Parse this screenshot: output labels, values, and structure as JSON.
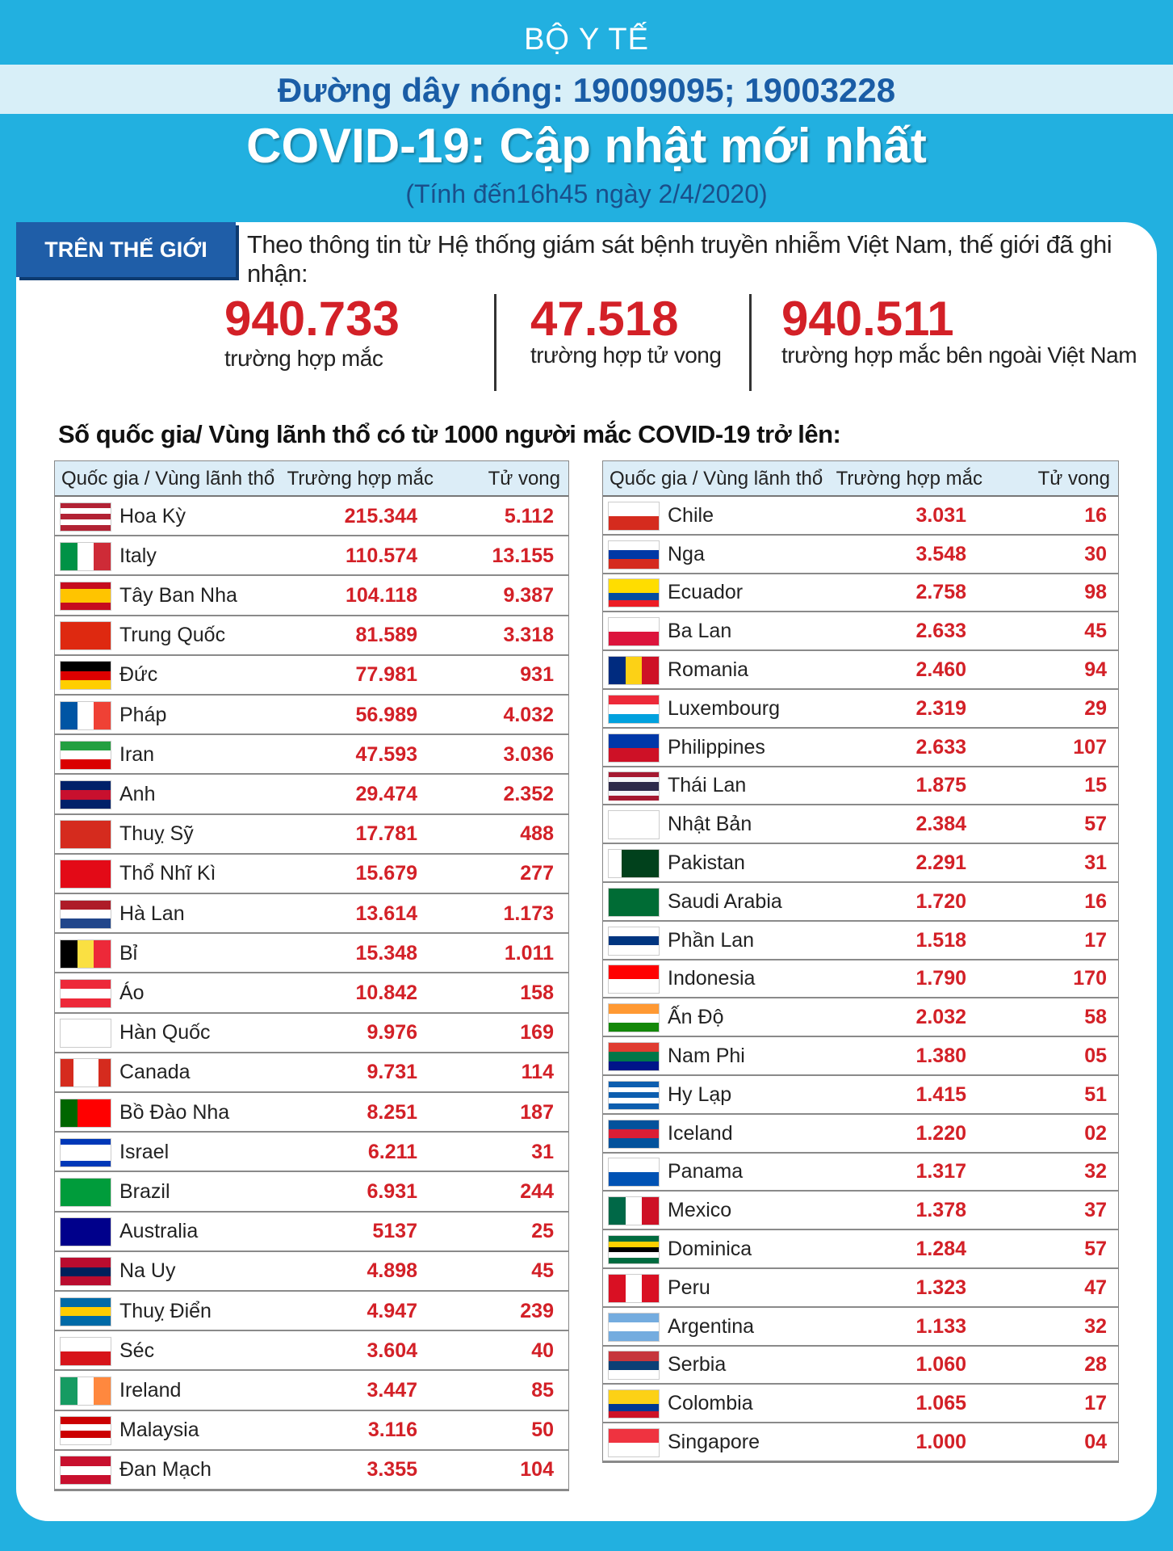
{
  "header": {
    "ministry": "BỘ Y TẾ",
    "hotline": "Đường dây nóng: 19009095; 19003228",
    "title": "COVID-19: Cập nhật mới nhất",
    "subtitle": "(Tính đến16h45 ngày 2/4/2020)"
  },
  "world": {
    "tab": "TRÊN THẾ GIỚI",
    "intro": "Theo thông tin từ Hệ thống giám sát bệnh truyền nhiễm Việt Nam, thế giới đã ghi nhận:",
    "stats": [
      {
        "value": "940.733",
        "label": "trường hợp mắc"
      },
      {
        "value": "47.518",
        "label": "trường hợp tử vong"
      },
      {
        "value": "940.511",
        "label": "trường hợp  mắc bên ngoài Việt Nam"
      }
    ]
  },
  "heading": "Số quốc gia/ Vùng lãnh thổ có từ 1000 người  mắc COVID-19 trở lên:",
  "tables": [
    {
      "columns": [
        "Quốc gia / Vùng lãnh thổ",
        "Trường hợp mắc",
        "Tử vong"
      ],
      "rows": [
        [
          "Hoa Kỳ",
          "215.344",
          "5.112"
        ],
        [
          "Italy",
          "110.574",
          "13.155"
        ],
        [
          "Tây Ban Nha",
          "104.118",
          "9.387"
        ],
        [
          "Trung Quốc",
          "81.589",
          "3.318"
        ],
        [
          "Đức",
          "77.981",
          "931"
        ],
        [
          "Pháp",
          "56.989",
          "4.032"
        ],
        [
          "Iran",
          "47.593",
          "3.036"
        ],
        [
          "Anh",
          "29.474",
          "2.352"
        ],
        [
          "Thuỵ Sỹ",
          "17.781",
          "488"
        ],
        [
          "Thổ Nhĩ Kì",
          "15.679",
          "277"
        ],
        [
          "Hà Lan",
          "13.614",
          "1.173"
        ],
        [
          "Bỉ",
          "15.348",
          "1.011"
        ],
        [
          "Áo",
          "10.842",
          "158"
        ],
        [
          "Hàn Quốc",
          "9.976",
          "169"
        ],
        [
          "Canada",
          "9.731",
          "114"
        ],
        [
          "Bồ Đào Nha",
          "8.251",
          "187"
        ],
        [
          "Israel",
          "6.211",
          "31"
        ],
        [
          "Brazil",
          "6.931",
          "244"
        ],
        [
          "Australia",
          "5137",
          "25"
        ],
        [
          "Na Uy",
          "4.898",
          "45"
        ],
        [
          "Thuỵ Điển",
          "4.947",
          "239"
        ],
        [
          "Séc",
          "3.604",
          "40"
        ],
        [
          "Ireland",
          "3.447",
          "85"
        ],
        [
          "Malaysia",
          "3.116",
          "50"
        ],
        [
          "Đan Mạch",
          "3.355",
          "104"
        ]
      ]
    },
    {
      "columns": [
        "Quốc gia / Vùng lãnh thổ",
        "Trường hợp mắc",
        "Tử vong"
      ],
      "rows": [
        [
          "Chile",
          "3.031",
          "16"
        ],
        [
          "Nga",
          "3.548",
          "30"
        ],
        [
          "Ecuador",
          "2.758",
          "98"
        ],
        [
          "Ba Lan",
          "2.633",
          "45"
        ],
        [
          "Romania",
          "2.460",
          "94"
        ],
        [
          "Luxembourg",
          "2.319",
          "29"
        ],
        [
          "Philippines",
          "2.633",
          "107"
        ],
        [
          "Thái Lan",
          "1.875",
          "15"
        ],
        [
          "Nhật Bản",
          "2.384",
          "57"
        ],
        [
          "Pakistan",
          "2.291",
          "31"
        ],
        [
          "Saudi Arabia",
          "1.720",
          "16"
        ],
        [
          "Phần Lan",
          "1.518",
          "17"
        ],
        [
          "Indonesia",
          "1.790",
          "170"
        ],
        [
          "Ấn Độ",
          "2.032",
          "58"
        ],
        [
          "Nam Phi",
          "1.380",
          "05"
        ],
        [
          "Hy Lạp",
          "1.415",
          "51"
        ],
        [
          "Iceland",
          "1.220",
          "02"
        ],
        [
          "Panama",
          "1.317",
          "32"
        ],
        [
          "Mexico",
          "1.378",
          "37"
        ],
        [
          "Dominica",
          "1.284",
          "57"
        ],
        [
          "Peru",
          "1.323",
          "47"
        ],
        [
          "Argentina",
          "1.133",
          "32"
        ],
        [
          "Serbia",
          "1.060",
          "28"
        ],
        [
          "Colombia",
          "1.065",
          "17"
        ],
        [
          "Singapore",
          "1.000",
          "04"
        ]
      ]
    }
  ]
}
